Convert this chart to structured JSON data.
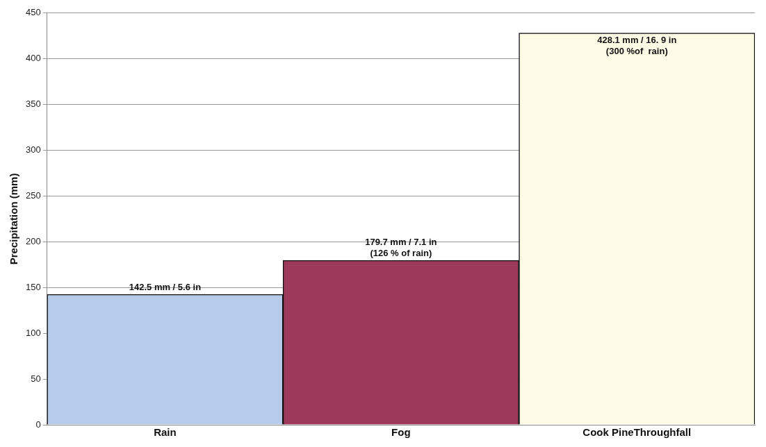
{
  "chart_data": {
    "type": "bar",
    "ylabel": "Precipitation (mm)",
    "categories": [
      "Rain",
      "Fog",
      "Cook PineThroughfall"
    ],
    "values": [
      142.5,
      179.7,
      428.1
    ],
    "colors": [
      "#b7cbea",
      "#9c3a5b",
      "#fdfbe6"
    ],
    "value_labels": [
      "142.5 mm / 5.6 in",
      "179.7 mm / 7.1 in\n(126 % of rain)",
      "428.1 mm / 16. 9 in\n(300 %of  rain)"
    ],
    "ylim": [
      0,
      450
    ],
    "yticks": [
      0,
      50,
      100,
      150,
      200,
      250,
      300,
      350,
      400,
      450
    ],
    "grid": "y"
  }
}
